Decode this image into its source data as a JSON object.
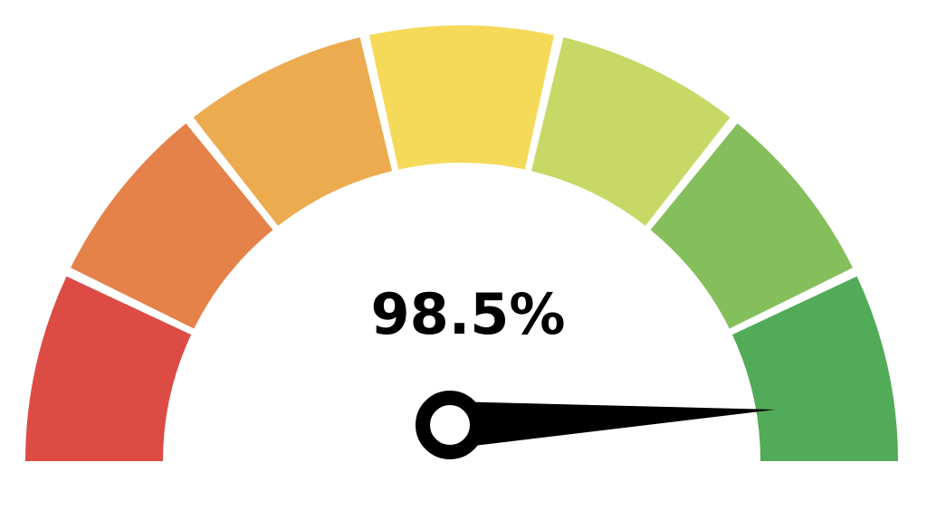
{
  "chart_data": {
    "type": "gauge",
    "value": 98.5,
    "value_label": "98.5%",
    "range": [
      0,
      100
    ],
    "band_count": 7,
    "band_colors": [
      "#dc4c44",
      "#e4824a",
      "#ecab4e",
      "#f5da5a",
      "#c8d866",
      "#85bf5c",
      "#52ab58"
    ],
    "needle_color": "#000000"
  }
}
